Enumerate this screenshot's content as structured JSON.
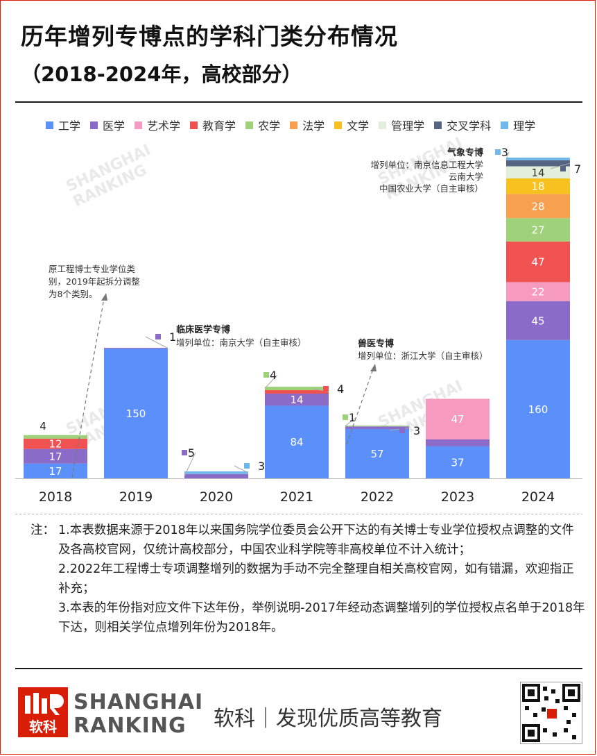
{
  "title": "历年增列专博点的学科门类分布情况",
  "subtitle": "（2018-2024年，高校部分）",
  "legend": [
    {
      "name": "工学",
      "color": "#5b8ff9"
    },
    {
      "name": "医学",
      "color": "#8a6cc8"
    },
    {
      "name": "艺术学",
      "color": "#f79ac0"
    },
    {
      "name": "教育学",
      "color": "#f05252"
    },
    {
      "name": "农学",
      "color": "#9fd17a"
    },
    {
      "name": "法学",
      "color": "#f7a150"
    },
    {
      "name": "文学",
      "color": "#f7c21f"
    },
    {
      "name": "管理学",
      "color": "#e4efdb"
    },
    {
      "name": "交叉学科",
      "color": "#556481"
    },
    {
      "name": "理学",
      "color": "#70b8ec"
    }
  ],
  "chart_data": {
    "type": "bar",
    "stacked": true,
    "categories": [
      "2018",
      "2019",
      "2020",
      "2021",
      "2022",
      "2023",
      "2024"
    ],
    "series": [
      {
        "name": "工学",
        "values": [
          17,
          150,
          0,
          84,
          57,
          37,
          160
        ]
      },
      {
        "name": "医学",
        "values": [
          17,
          1,
          5,
          14,
          3,
          8,
          45
        ]
      },
      {
        "name": "艺术学",
        "values": [
          0,
          0,
          0,
          0,
          0,
          47,
          22
        ]
      },
      {
        "name": "教育学",
        "values": [
          12,
          0,
          0,
          4,
          0,
          0,
          47
        ]
      },
      {
        "name": "农学",
        "values": [
          4,
          0,
          0,
          4,
          1,
          0,
          27
        ]
      },
      {
        "name": "法学",
        "values": [
          0,
          0,
          0,
          0,
          0,
          0,
          28
        ]
      },
      {
        "name": "文学",
        "values": [
          0,
          0,
          0,
          0,
          0,
          0,
          18
        ]
      },
      {
        "name": "管理学",
        "values": [
          0,
          0,
          0,
          0,
          0,
          0,
          14
        ]
      },
      {
        "name": "交叉学科",
        "values": [
          0,
          0,
          0,
          0,
          0,
          0,
          7
        ]
      },
      {
        "name": "理学",
        "values": [
          0,
          0,
          3,
          0,
          0,
          0,
          3
        ]
      }
    ],
    "ylim": [
      0,
      370
    ],
    "annotations": [
      {
        "lines": [
          "原工程博士专业学位类",
          "别，2019年起拆分调整",
          "为8个类别。"
        ]
      },
      {
        "title": "临床医学专博",
        "lines": [
          "增列单位：南京大学（自主审核）"
        ]
      },
      {
        "title": "兽医专博",
        "lines": [
          "增列单位：浙江大学（自主审核）"
        ]
      },
      {
        "title": "气象专博",
        "lines": [
          "增列单位：南京信息工程大学",
          "云南大学",
          "中国农业大学（自主审核）"
        ]
      }
    ]
  },
  "notes": [
    {
      "prefix": "注：",
      "text": "1.本表数据来源于2018年以来国务院学位委员会公开下达的有关博士专业学位授权点调整的文件及各高校官网，仅统计高校部分，中国农业科学院等非高校单位不计入统计；"
    },
    {
      "prefix": "",
      "text": "2.2022年工程博士专项调整增列的数据为手动不完全整理自相关高校官网，如有错漏，欢迎指正补充；"
    },
    {
      "prefix": "",
      "text": "3.本表的年份指对应文件下达年份，举例说明-2017年经动态调整增列的学位授权点名单于2018年下达，则相关学位点增列年份为2018年。"
    }
  ],
  "footer": {
    "logo_text": "软科",
    "brand_line1": "SHANGHAI",
    "brand_line2": "RANKING",
    "slogan": "软科｜发现优质高等教育"
  },
  "watermark": {
    "line1": "SHANGHAI",
    "line2": "RANKING",
    "mark": "软科"
  }
}
